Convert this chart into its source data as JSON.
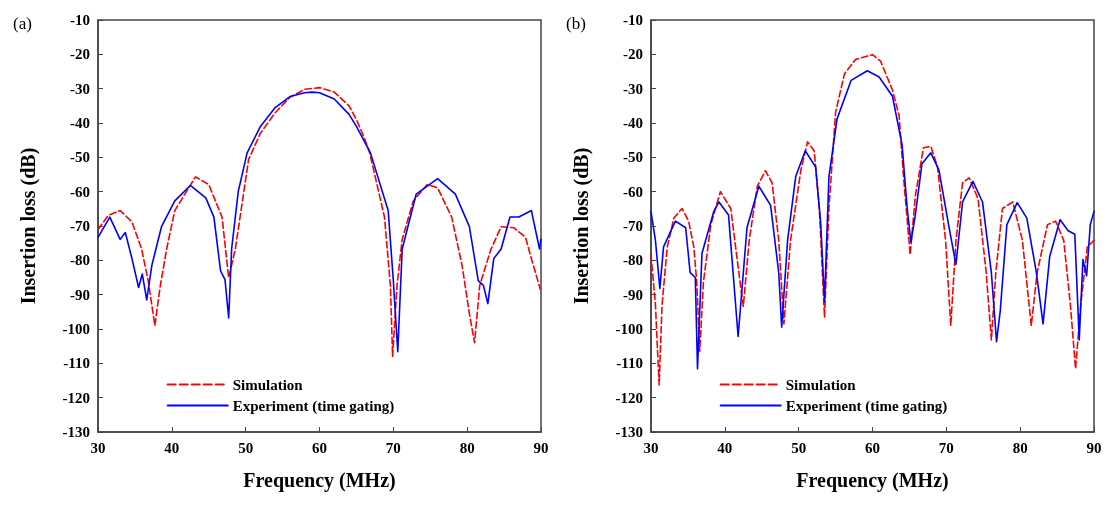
{
  "chart_data": [
    {
      "type": "line",
      "title": "(a)",
      "xlabel": "Frequency (MHz)",
      "ylabel": "Insertion loss (dB)",
      "xlim": [
        30,
        90
      ],
      "ylim": [
        -130,
        -10
      ],
      "xticks": [
        30,
        40,
        50,
        60,
        70,
        80,
        90
      ],
      "yticks": [
        -130,
        -120,
        -110,
        -100,
        -90,
        -80,
        -70,
        -60,
        -50,
        -40,
        -30,
        -20,
        -10
      ],
      "legend": "bottom",
      "marker": "none",
      "series": [
        {
          "name": "Simulation",
          "color": "#ff0000",
          "line_style": "dashed",
          "x": [
            30,
            31.4,
            33.0,
            34.6,
            35.9,
            36.8,
            37.7,
            38.4,
            39.3,
            40.4,
            43.2,
            45.0,
            46.8,
            47.7,
            48.6,
            50.4,
            52,
            54,
            56,
            58,
            60,
            62,
            64,
            65,
            66,
            66.8,
            68.8,
            69.6,
            69.9,
            70.5,
            71.2,
            72.7,
            74.6,
            76.0,
            77.9,
            79.3,
            80.3,
            81.0,
            81.7,
            83.2,
            84.6,
            86.3,
            87.9,
            88.7,
            89.9
          ],
          "values": [
            -71,
            -66.9,
            -65.5,
            -68.8,
            -76.7,
            -85.9,
            -99,
            -87.9,
            -76.7,
            -65.5,
            -55.7,
            -57.9,
            -67.4,
            -85.1,
            -76.7,
            -50.6,
            -43,
            -37,
            -32.5,
            -30.2,
            -29.7,
            -31,
            -35,
            -39,
            -44,
            -48.7,
            -67.4,
            -87.3,
            -108,
            -87.3,
            -73.9,
            -62.7,
            -57.9,
            -58.9,
            -67.4,
            -81.4,
            -95.5,
            -104,
            -87.3,
            -76.9,
            -70.2,
            -70.5,
            -73.3,
            -79.5,
            -88.4
          ]
        },
        {
          "name": "Experiment (time gating)",
          "color": "#0000ff",
          "line_style": "solid",
          "x": [
            30,
            31.6,
            33.0,
            33.7,
            34.6,
            35.5,
            36.0,
            36.6,
            37.3,
            38.6,
            40.4,
            42.5,
            44.6,
            45.7,
            46.6,
            47.2,
            47.7,
            48.1,
            49.0,
            50.2,
            52,
            54,
            56,
            58,
            59,
            60,
            62,
            64,
            65,
            66.9,
            69.3,
            70.0,
            70.6,
            71.2,
            73.1,
            76.0,
            78.4,
            80.3,
            81.5,
            82.2,
            82.8,
            83.6,
            84.6,
            85.8,
            87.0,
            88.7,
            89.8,
            90
          ],
          "values": [
            -73.3,
            -67.4,
            -73.9,
            -71.9,
            -79.5,
            -87.9,
            -84,
            -91.5,
            -81.4,
            -70.2,
            -62.7,
            -58.2,
            -61.8,
            -67.4,
            -83.1,
            -85.6,
            -96.8,
            -76.7,
            -59.9,
            -48.7,
            -41,
            -35.5,
            -32.3,
            -31.2,
            -31,
            -31.2,
            -33,
            -37.5,
            -41,
            -48.7,
            -65.5,
            -85.9,
            -106.6,
            -76.7,
            -60.7,
            -56.2,
            -60.7,
            -70.2,
            -85.9,
            -87.3,
            -92.6,
            -79.5,
            -76.7,
            -67.4,
            -67.4,
            -65.5,
            -76.7,
            -73.9
          ]
        }
      ]
    },
    {
      "type": "line",
      "title": "(b)",
      "xlabel": "Frequency (MHz)",
      "ylabel": "Insertion loss (dB)",
      "xlim": [
        30,
        90
      ],
      "ylim": [
        -130,
        -10
      ],
      "xticks": [
        30,
        40,
        50,
        60,
        70,
        80,
        90
      ],
      "yticks": [
        -130,
        -120,
        -110,
        -100,
        -90,
        -80,
        -70,
        -60,
        -50,
        -40,
        -30,
        -20,
        -10
      ],
      "legend": "bottom",
      "marker": "none",
      "series": [
        {
          "name": "Simulation",
          "color": "#ff0000",
          "line_style": "dashed",
          "x": [
            30.0,
            30.6,
            31.1,
            31.5,
            32.2,
            33.1,
            34.2,
            35.1,
            35.8,
            36.2,
            36.6,
            37.1,
            38.1,
            39.4,
            40.8,
            41.9,
            42.5,
            43.3,
            44.4,
            45.5,
            46.4,
            47.3,
            48.0,
            48.9,
            50.3,
            51.2,
            52.1,
            52.8,
            53.5,
            54.1,
            55.0,
            56.2,
            57.7,
            60.0,
            61.1,
            62.7,
            63.6,
            64.2,
            65.1,
            65.8,
            66.9,
            67.9,
            68.8,
            69.9,
            70.6,
            71.3,
            72.2,
            73.1,
            74.3,
            75.4,
            76.1,
            76.7,
            77.6,
            79.0,
            80.3,
            81.5,
            82.3,
            83.7,
            84.8,
            85.9,
            86.8,
            87.5,
            88.2,
            89.1,
            90.0
          ],
          "values": [
            -78.4,
            -92.9,
            -116.3,
            -92.9,
            -76.1,
            -67.7,
            -64.9,
            -68.6,
            -76.1,
            -86.4,
            -106.5,
            -86.4,
            -69.6,
            -60.0,
            -64.9,
            -83.6,
            -93.4,
            -74.2,
            -58.4,
            -53.9,
            -57.4,
            -74.2,
            -98.5,
            -74.2,
            -53.7,
            -45.5,
            -48.1,
            -64.9,
            -96.6,
            -64.9,
            -36.9,
            -25.7,
            -21.5,
            -20.1,
            -22.0,
            -30.4,
            -37.8,
            -55.6,
            -78.4,
            -61.3,
            -47.2,
            -46.8,
            -52.8,
            -74.2,
            -99.0,
            -74.2,
            -57.4,
            -56.0,
            -62.1,
            -83.6,
            -103.2,
            -83.6,
            -64.9,
            -63.0,
            -74.2,
            -99.0,
            -83.6,
            -69.6,
            -68.6,
            -74.2,
            -92.9,
            -111.6,
            -92.9,
            -76.1,
            -74.2
          ]
        },
        {
          "name": "Experiment (time gating)",
          "color": "#0000ff",
          "line_style": "solid",
          "x": [
            30.0,
            30.6,
            31.2,
            31.7,
            33.3,
            34.7,
            35.3,
            36.0,
            36.3,
            36.9,
            38.5,
            39.2,
            40.5,
            41.8,
            43.0,
            44.6,
            46.2,
            47.3,
            47.7,
            48.5,
            49.6,
            50.9,
            52.3,
            53.0,
            53.5,
            54.1,
            55.2,
            57.1,
            59.3,
            60.9,
            62.7,
            64.0,
            64.7,
            65.2,
            65.8,
            66.7,
            67.9,
            69.0,
            70.3,
            71.3,
            72.2,
            73.6,
            74.9,
            76.1,
            76.8,
            77.3,
            78.2,
            79.6,
            80.9,
            82.2,
            83.1,
            84.0,
            85.4,
            86.5,
            87.4,
            88.0,
            88.5,
            89.0,
            89.5,
            90.0
          ],
          "values": [
            -65.8,
            -74.2,
            -88.2,
            -76.1,
            -68.6,
            -70.5,
            -83.6,
            -85.0,
            -111.6,
            -78.0,
            -65.8,
            -63.0,
            -66.8,
            -102.2,
            -70.5,
            -58.4,
            -64.0,
            -83.6,
            -99.5,
            -74.2,
            -55.6,
            -48.1,
            -52.8,
            -69.6,
            -92.0,
            -55.6,
            -38.8,
            -27.6,
            -24.8,
            -26.6,
            -32.2,
            -46.2,
            -64.9,
            -74.7,
            -66.8,
            -51.9,
            -48.7,
            -53.7,
            -69.6,
            -81.2,
            -63.0,
            -57.0,
            -63.0,
            -83.6,
            -103.7,
            -94.8,
            -69.6,
            -63.2,
            -67.7,
            -83.6,
            -98.5,
            -78.9,
            -68.2,
            -71.4,
            -72.4,
            -103.2,
            -79.8,
            -84.5,
            -69.6,
            -65.8
          ]
        }
      ]
    }
  ]
}
